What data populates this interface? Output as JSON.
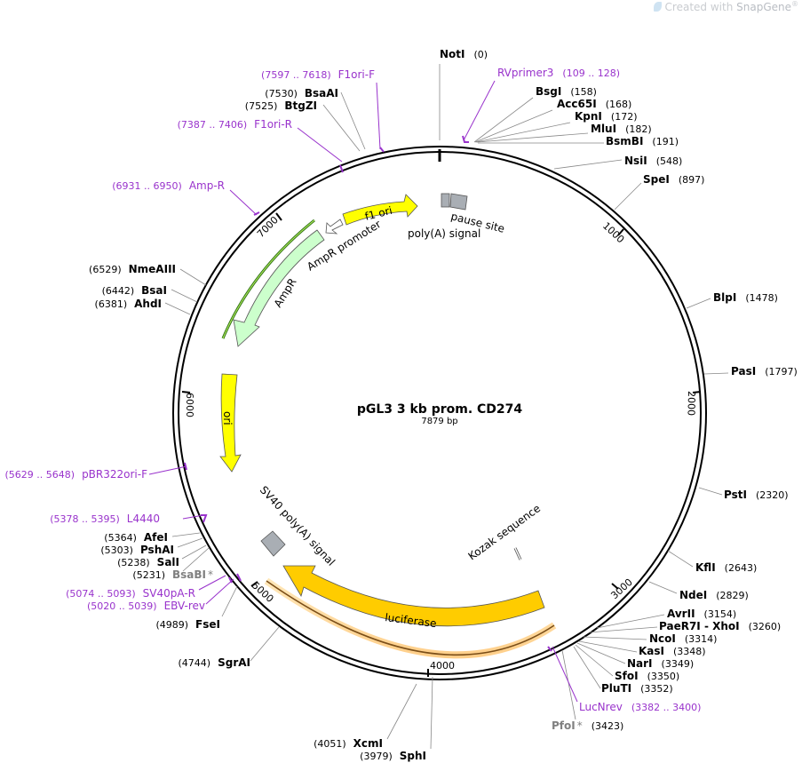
{
  "watermark": {
    "prefix": "Created with ",
    "brand": "SnapGene",
    "reg": "®"
  },
  "plasmid": {
    "name": "pGL3 3 kb prom. CD274",
    "length_label": "7879 bp",
    "length": 7879
  },
  "tick_labels": [
    "1000",
    "2000",
    "3000",
    "4000",
    "5000",
    "6000",
    "7000"
  ],
  "enzymes": [
    {
      "name": "NotI",
      "pos": "(0)"
    },
    {
      "name": "BsgI",
      "pos": "(158)"
    },
    {
      "name": "Acc65I",
      "pos": "(168)"
    },
    {
      "name": "KpnI",
      "pos": "(172)"
    },
    {
      "name": "MluI",
      "pos": "(182)"
    },
    {
      "name": "BsmBI",
      "pos": "(191)"
    },
    {
      "name": "NsiI",
      "pos": "(548)"
    },
    {
      "name": "SpeI",
      "pos": "(897)"
    },
    {
      "name": "BlpI",
      "pos": "(1478)"
    },
    {
      "name": "PasI",
      "pos": "(1797)"
    },
    {
      "name": "PstI",
      "pos": "(2320)"
    },
    {
      "name": "KflI",
      "pos": "(2643)"
    },
    {
      "name": "NdeI",
      "pos": "(2829)"
    },
    {
      "name": "AvrII",
      "pos": "(3154)"
    },
    {
      "name": "PaeR7I - XhoI",
      "pos": "(3260)"
    },
    {
      "name": "NcoI",
      "pos": "(3314)"
    },
    {
      "name": "KasI",
      "pos": "(3348)"
    },
    {
      "name": "NarI",
      "pos": "(3349)"
    },
    {
      "name": "SfoI",
      "pos": "(3350)"
    },
    {
      "name": "PluTI",
      "pos": "(3352)"
    },
    {
      "name": "PfoI",
      "pos": "(3423)",
      "star": "*"
    },
    {
      "name": "SphI",
      "pos": "(3979)"
    },
    {
      "name": "XcmI",
      "pos": "(4051)"
    },
    {
      "name": "SgrAI",
      "pos": "(4744)"
    },
    {
      "name": "FseI",
      "pos": "(4989)"
    },
    {
      "name": "BsaBI",
      "pos": "(5231)",
      "star": "*"
    },
    {
      "name": "SalI",
      "pos": "(5238)"
    },
    {
      "name": "PshAI",
      "pos": "(5303)"
    },
    {
      "name": "AfeI",
      "pos": "(5364)"
    },
    {
      "name": "AhdI",
      "pos": "(6381)"
    },
    {
      "name": "BsaI",
      "pos": "(6442)"
    },
    {
      "name": "NmeAIII",
      "pos": "(6529)"
    },
    {
      "name": "BtgZI",
      "pos": "(7525)"
    },
    {
      "name": "BsaAI",
      "pos": "(7530)"
    }
  ],
  "primers": [
    {
      "name": "RVprimer3",
      "range": "(109 .. 128)"
    },
    {
      "name": "LucNrev",
      "range": "(3382 .. 3400)"
    },
    {
      "name": "EBV-rev",
      "range": "(5020 .. 5039)"
    },
    {
      "name": "SV40pA-R",
      "range": "(5074 .. 5093)"
    },
    {
      "name": "L4440",
      "range": "(5378 .. 5395)"
    },
    {
      "name": "pBR322ori-F",
      "range": "(5629 .. 5648)"
    },
    {
      "name": "Amp-R",
      "range": "(6931 .. 6950)"
    },
    {
      "name": "F1ori-R",
      "range": "(7387 .. 7406)"
    },
    {
      "name": "F1ori-F",
      "range": "(7597 .. 7618)"
    }
  ],
  "features": [
    {
      "name": "f1 ori",
      "start": 7380,
      "end": 7835,
      "color": "#ffff00"
    },
    {
      "name": "AmpR promoter",
      "start": 7276,
      "end": 7380,
      "color": "#ffffff"
    },
    {
      "name": "AmpR",
      "start": 6415,
      "end": 7276,
      "color": "#ccffcc"
    },
    {
      "name": "ori",
      "start": 5645,
      "end": 6234,
      "color": "#ffff00"
    },
    {
      "name": "luciferase",
      "start": 3342,
      "end": 4992,
      "color": "#ffcc00"
    },
    {
      "name": "SV40 poly(A) signal",
      "start": 5000,
      "end": 5130,
      "color": "#b0b5bb"
    },
    {
      "name": "poly(A) signal",
      "start": 10,
      "end": 60,
      "color": "#b0b5bb"
    },
    {
      "name": "pause site",
      "start": 70,
      "end": 150,
      "color": "#b0b5bb"
    },
    {
      "name": "Kozak sequence",
      "start": 3330,
      "end": 3345,
      "color": "#ffffff"
    }
  ],
  "colors": {
    "primer": "#9933cc",
    "enzyme": "#000000",
    "star_enzyme": "#808080",
    "backbone": "#000000"
  }
}
